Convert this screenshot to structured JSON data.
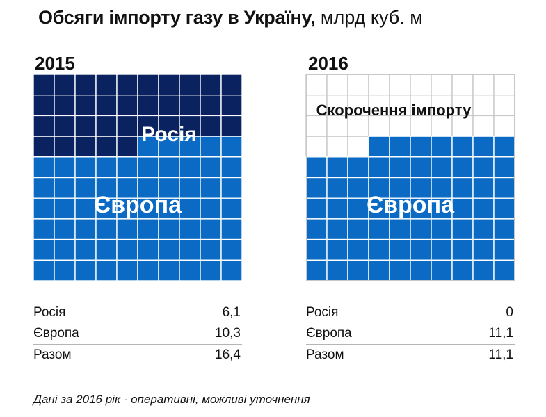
{
  "title": {
    "bold": "Обсяги імпорту газу в Україну,",
    "unit": "млрд куб. м"
  },
  "colors": {
    "russia": "#0a2260",
    "europe": "#0b6bc4",
    "empty": "#ffffff",
    "grid_line_filled": "#ffffff",
    "grid_line_empty": "#c8c8c8"
  },
  "chart_data": [
    {
      "type": "waffle",
      "year": "2015",
      "rows": 10,
      "cols": 10,
      "cells": {
        "russia": 35,
        "europe": 65,
        "empty": 0
      },
      "series": [
        {
          "name": "Росія",
          "value": "6,1",
          "cells": 35,
          "color_key": "russia"
        },
        {
          "name": "Європа",
          "value": "10,3",
          "cells": 65,
          "color_key": "europe"
        }
      ],
      "labels": [
        {
          "text": "Росія",
          "color": "#ffffff"
        },
        {
          "text": "Європа",
          "color": "#ffffff"
        }
      ],
      "table": [
        {
          "label": "Росія",
          "value": "6,1"
        },
        {
          "label": "Європа",
          "value": "10,3"
        },
        {
          "label": "Разом",
          "value": "16,4"
        }
      ]
    },
    {
      "type": "waffle",
      "year": "2016",
      "rows": 10,
      "cols": 10,
      "cells": {
        "russia": 0,
        "europe": 67,
        "empty": 33
      },
      "series": [
        {
          "name": "Росія",
          "value": "0",
          "cells": 0,
          "color_key": "russia"
        },
        {
          "name": "Європа",
          "value": "11,1",
          "cells": 67,
          "color_key": "europe"
        },
        {
          "name": "Скорочення імпорту",
          "value": "",
          "cells": 33,
          "color_key": "empty"
        }
      ],
      "labels": [
        {
          "text": "Скорочення імпорту",
          "color": "#111111"
        },
        {
          "text": "Європа",
          "color": "#ffffff"
        }
      ],
      "table": [
        {
          "label": "Росія",
          "value": "0"
        },
        {
          "label": "Європа",
          "value": "11,1"
        },
        {
          "label": "Разом",
          "value": "11,1"
        }
      ]
    }
  ],
  "note": "Дані за 2016 рік - оперативні, можливі уточнення"
}
